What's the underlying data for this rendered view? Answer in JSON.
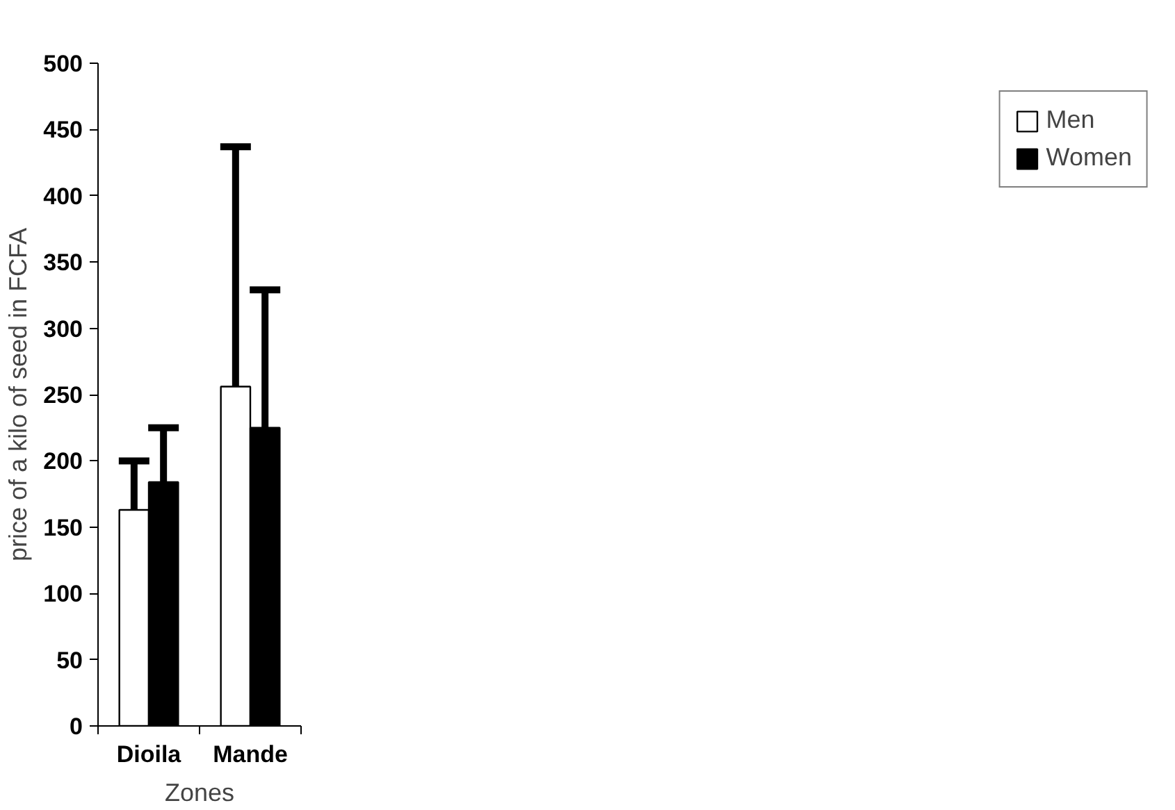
{
  "chart_data": {
    "type": "bar",
    "xlabel": "Zones",
    "ylabel": "price of a kilo of seed in FCFA",
    "categories": [
      "Dioila",
      "Mande"
    ],
    "series": [
      {
        "name": "Men",
        "color": "#ffffff",
        "values": [
          163,
          256
        ],
        "errors": [
          [
            163,
            200
          ],
          [
            256,
            437
          ]
        ]
      },
      {
        "name": "Women",
        "color": "#000000",
        "values": [
          184,
          225
        ],
        "errors": [
          [
            184,
            225
          ],
          [
            225,
            329
          ]
        ]
      }
    ],
    "ylim": [
      0,
      500
    ],
    "yticks": [
      0,
      50,
      100,
      150,
      200,
      250,
      300,
      350,
      400,
      450,
      500
    ],
    "grid": false,
    "legend": "right"
  }
}
